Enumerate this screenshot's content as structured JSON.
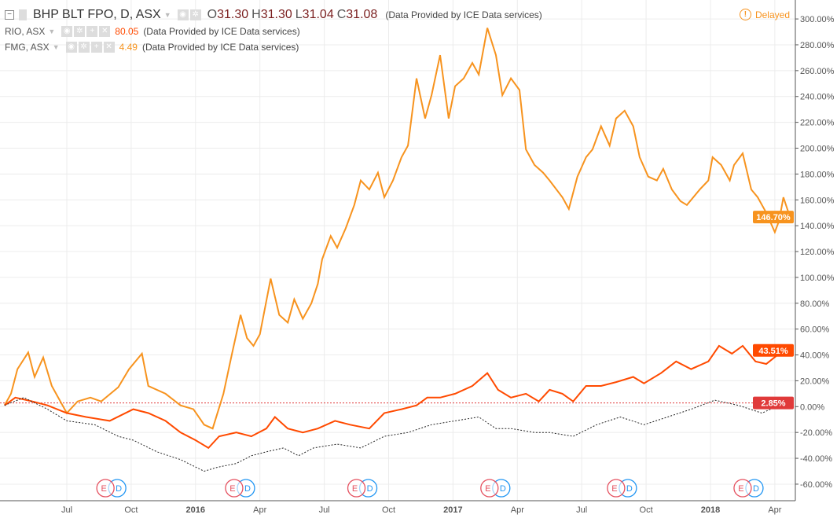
{
  "header": {
    "main_symbol": "BHP BLT FPO, D, ASX",
    "open_label": "O",
    "open": "31.30",
    "high_label": "H",
    "high": "31.30",
    "low_label": "L",
    "low": "31.04",
    "close_label": "C",
    "close": "31.08",
    "provider": "(Data Provided by ICE Data services)",
    "delayed": "Delayed",
    "delayed_icon": "!",
    "compare": [
      {
        "symbol": "RIO, ASX",
        "value": "80.05",
        "color": "#ff4a00"
      },
      {
        "symbol": "FMG, ASX",
        "value": "4.49",
        "color": "#f7931e"
      }
    ]
  },
  "chart_data": {
    "type": "line",
    "x_unit": "months since Jul 2015",
    "xlim": [
      -2.9,
      34.3
    ],
    "ylim": [
      -60,
      300
    ],
    "ylabel_format": "percent",
    "x_ticks": [
      {
        "label": "Jul",
        "x": 0
      },
      {
        "label": "Oct",
        "x": 3
      },
      {
        "label": "2016",
        "x": 6,
        "bold": true
      },
      {
        "label": "Apr",
        "x": 9
      },
      {
        "label": "Jul",
        "x": 12
      },
      {
        "label": "Oct",
        "x": 15
      },
      {
        "label": "2017",
        "x": 18,
        "bold": true
      },
      {
        "label": "Apr",
        "x": 21
      },
      {
        "label": "Jul",
        "x": 24
      },
      {
        "label": "Oct",
        "x": 27
      },
      {
        "label": "2018",
        "x": 30,
        "bold": true
      },
      {
        "label": "Apr",
        "x": 33
      }
    ],
    "y_ticks": [
      "300.00%",
      "280.00%",
      "260.00%",
      "240.00%",
      "220.00%",
      "200.00%",
      "180.00%",
      "160.00%",
      "140.00%",
      "120.00%",
      "100.00%",
      "80.00%",
      "60.00%",
      "40.00%",
      "20.00%",
      "0.00%",
      "-20.00%",
      "-40.00%",
      "-60.00%"
    ],
    "y_tick_values": [
      300,
      280,
      260,
      240,
      220,
      200,
      180,
      160,
      140,
      120,
      100,
      80,
      60,
      40,
      20,
      0,
      -20,
      -40,
      -60
    ],
    "series": [
      {
        "name": "FMG, ASX",
        "color": "#f7931e",
        "last_label": "146.70%",
        "last": 146.7,
        "x": [
          -2.9,
          -2.6,
          -2.3,
          -1.8,
          -1.5,
          -1.1,
          -0.7,
          0,
          0.5,
          1.1,
          1.6,
          2.4,
          2.9,
          3.5,
          3.8,
          4.6,
          5.3,
          5.9,
          6.4,
          6.8,
          7.3,
          7.7,
          8.1,
          8.4,
          8.7,
          9.0,
          9.5,
          9.9,
          10.3,
          10.6,
          11.0,
          11.4,
          11.7,
          11.9,
          12.3,
          12.6,
          13.0,
          13.4,
          13.7,
          14.1,
          14.5,
          14.8,
          15.2,
          15.6,
          15.9,
          16.3,
          16.7,
          17.0,
          17.4,
          17.8,
          18.1,
          18.5,
          18.9,
          19.2,
          19.6,
          20.0,
          20.3,
          20.7,
          21.1,
          21.4,
          21.8,
          22.2,
          22.5,
          23.1,
          23.4,
          23.8,
          24.2,
          24.5,
          24.9,
          25.3,
          25.6,
          26.0,
          26.4,
          26.7,
          27.1,
          27.5,
          27.8,
          28.2,
          28.6,
          28.9,
          29.5,
          29.9,
          30.1,
          30.5,
          30.9,
          31.1,
          31.5,
          31.9,
          32.2,
          32.6,
          33.0,
          33.2,
          33.4,
          33.7
        ],
        "y": [
          1,
          10,
          29,
          42,
          23,
          38,
          16,
          -5,
          4,
          7,
          4,
          15,
          29,
          41,
          16,
          10,
          1,
          -2,
          -14,
          -17,
          10,
          41,
          71,
          53,
          47,
          56,
          99,
          71,
          65,
          83,
          68,
          80,
          95,
          114,
          132,
          123,
          138,
          156,
          175,
          168,
          181,
          162,
          175,
          193,
          202,
          254,
          223,
          241,
          272,
          223,
          248,
          254,
          266,
          257,
          293,
          272,
          241,
          254,
          245,
          199,
          187,
          181,
          175,
          162,
          153,
          178,
          193,
          199,
          217,
          202,
          223,
          229,
          217,
          193,
          178,
          175,
          184,
          168,
          159,
          156,
          168,
          175,
          193,
          187,
          175,
          187,
          196,
          168,
          162,
          150,
          135,
          144,
          162,
          147
        ]
      },
      {
        "name": "RIO, ASX",
        "color": "#ff4a00",
        "last_label": "43.51%",
        "last": 43.51,
        "x": [
          -2.9,
          -2.4,
          -1.6,
          -0.9,
          0,
          0.9,
          2.0,
          3.1,
          3.8,
          4.6,
          5.3,
          6.0,
          6.6,
          7.1,
          7.9,
          8.6,
          9.3,
          9.7,
          10.3,
          11.0,
          11.7,
          12.5,
          13.2,
          14.1,
          14.8,
          15.6,
          16.3,
          16.8,
          17.4,
          18.1,
          18.9,
          19.6,
          20.1,
          20.7,
          21.4,
          22.0,
          22.5,
          23.1,
          23.6,
          24.2,
          24.9,
          25.6,
          26.4,
          26.9,
          27.7,
          28.4,
          29.1,
          29.9,
          30.4,
          31.0,
          31.5,
          32.1,
          32.6,
          33.2,
          33.5,
          33.7
        ],
        "y": [
          1,
          7,
          4,
          1,
          -5,
          -8,
          -11,
          -2,
          -5,
          -11,
          -20,
          -26,
          -32,
          -23,
          -20,
          -23,
          -17,
          -8,
          -17,
          -20,
          -17,
          -11,
          -14,
          -17,
          -5,
          -2,
          1,
          7,
          7,
          10,
          16,
          26,
          13,
          7,
          10,
          4,
          13,
          10,
          4,
          16,
          16,
          19,
          23,
          18,
          26,
          35,
          29,
          35,
          47,
          41,
          47,
          35,
          33,
          41,
          47,
          43.51
        ]
      },
      {
        "name": "BHP BLT FPO, D, ASX",
        "color": "#222222",
        "last_label": "2.85%",
        "last": 2.85,
        "x": [
          -2.9,
          -2.0,
          -0.9,
          0,
          1.3,
          2.4,
          3.1,
          4.2,
          5.3,
          6.4,
          7.0,
          7.9,
          8.6,
          9.3,
          10.1,
          10.8,
          11.5,
          12.6,
          13.7,
          14.8,
          15.9,
          17.0,
          18.1,
          19.2,
          20.0,
          20.7,
          21.8,
          22.5,
          23.6,
          24.7,
          25.8,
          26.9,
          28.0,
          29.1,
          30.2,
          31.3,
          32.4,
          33.2,
          33.7
        ],
        "y": [
          1,
          7,
          -2,
          -11,
          -14,
          -23,
          -26,
          -35,
          -41,
          -50,
          -47,
          -44,
          -38,
          -35,
          -32,
          -38,
          -32,
          -29,
          -32,
          -23,
          -20,
          -14,
          -11,
          -8,
          -17,
          -17,
          -20,
          -20,
          -23,
          -14,
          -8,
          -14,
          -8,
          -2,
          5,
          1,
          -5,
          1,
          2.85
        ]
      }
    ],
    "events": [
      {
        "x": 1.8,
        "e": "E",
        "d": "D"
      },
      {
        "x": 7.8,
        "e": "E",
        "d": "D"
      },
      {
        "x": 13.5,
        "e": "E",
        "d": "D"
      },
      {
        "x": 19.7,
        "e": "E",
        "d": "D"
      },
      {
        "x": 25.6,
        "e": "E",
        "d": "D"
      },
      {
        "x": 31.5,
        "e": "E",
        "d": "D"
      }
    ]
  }
}
